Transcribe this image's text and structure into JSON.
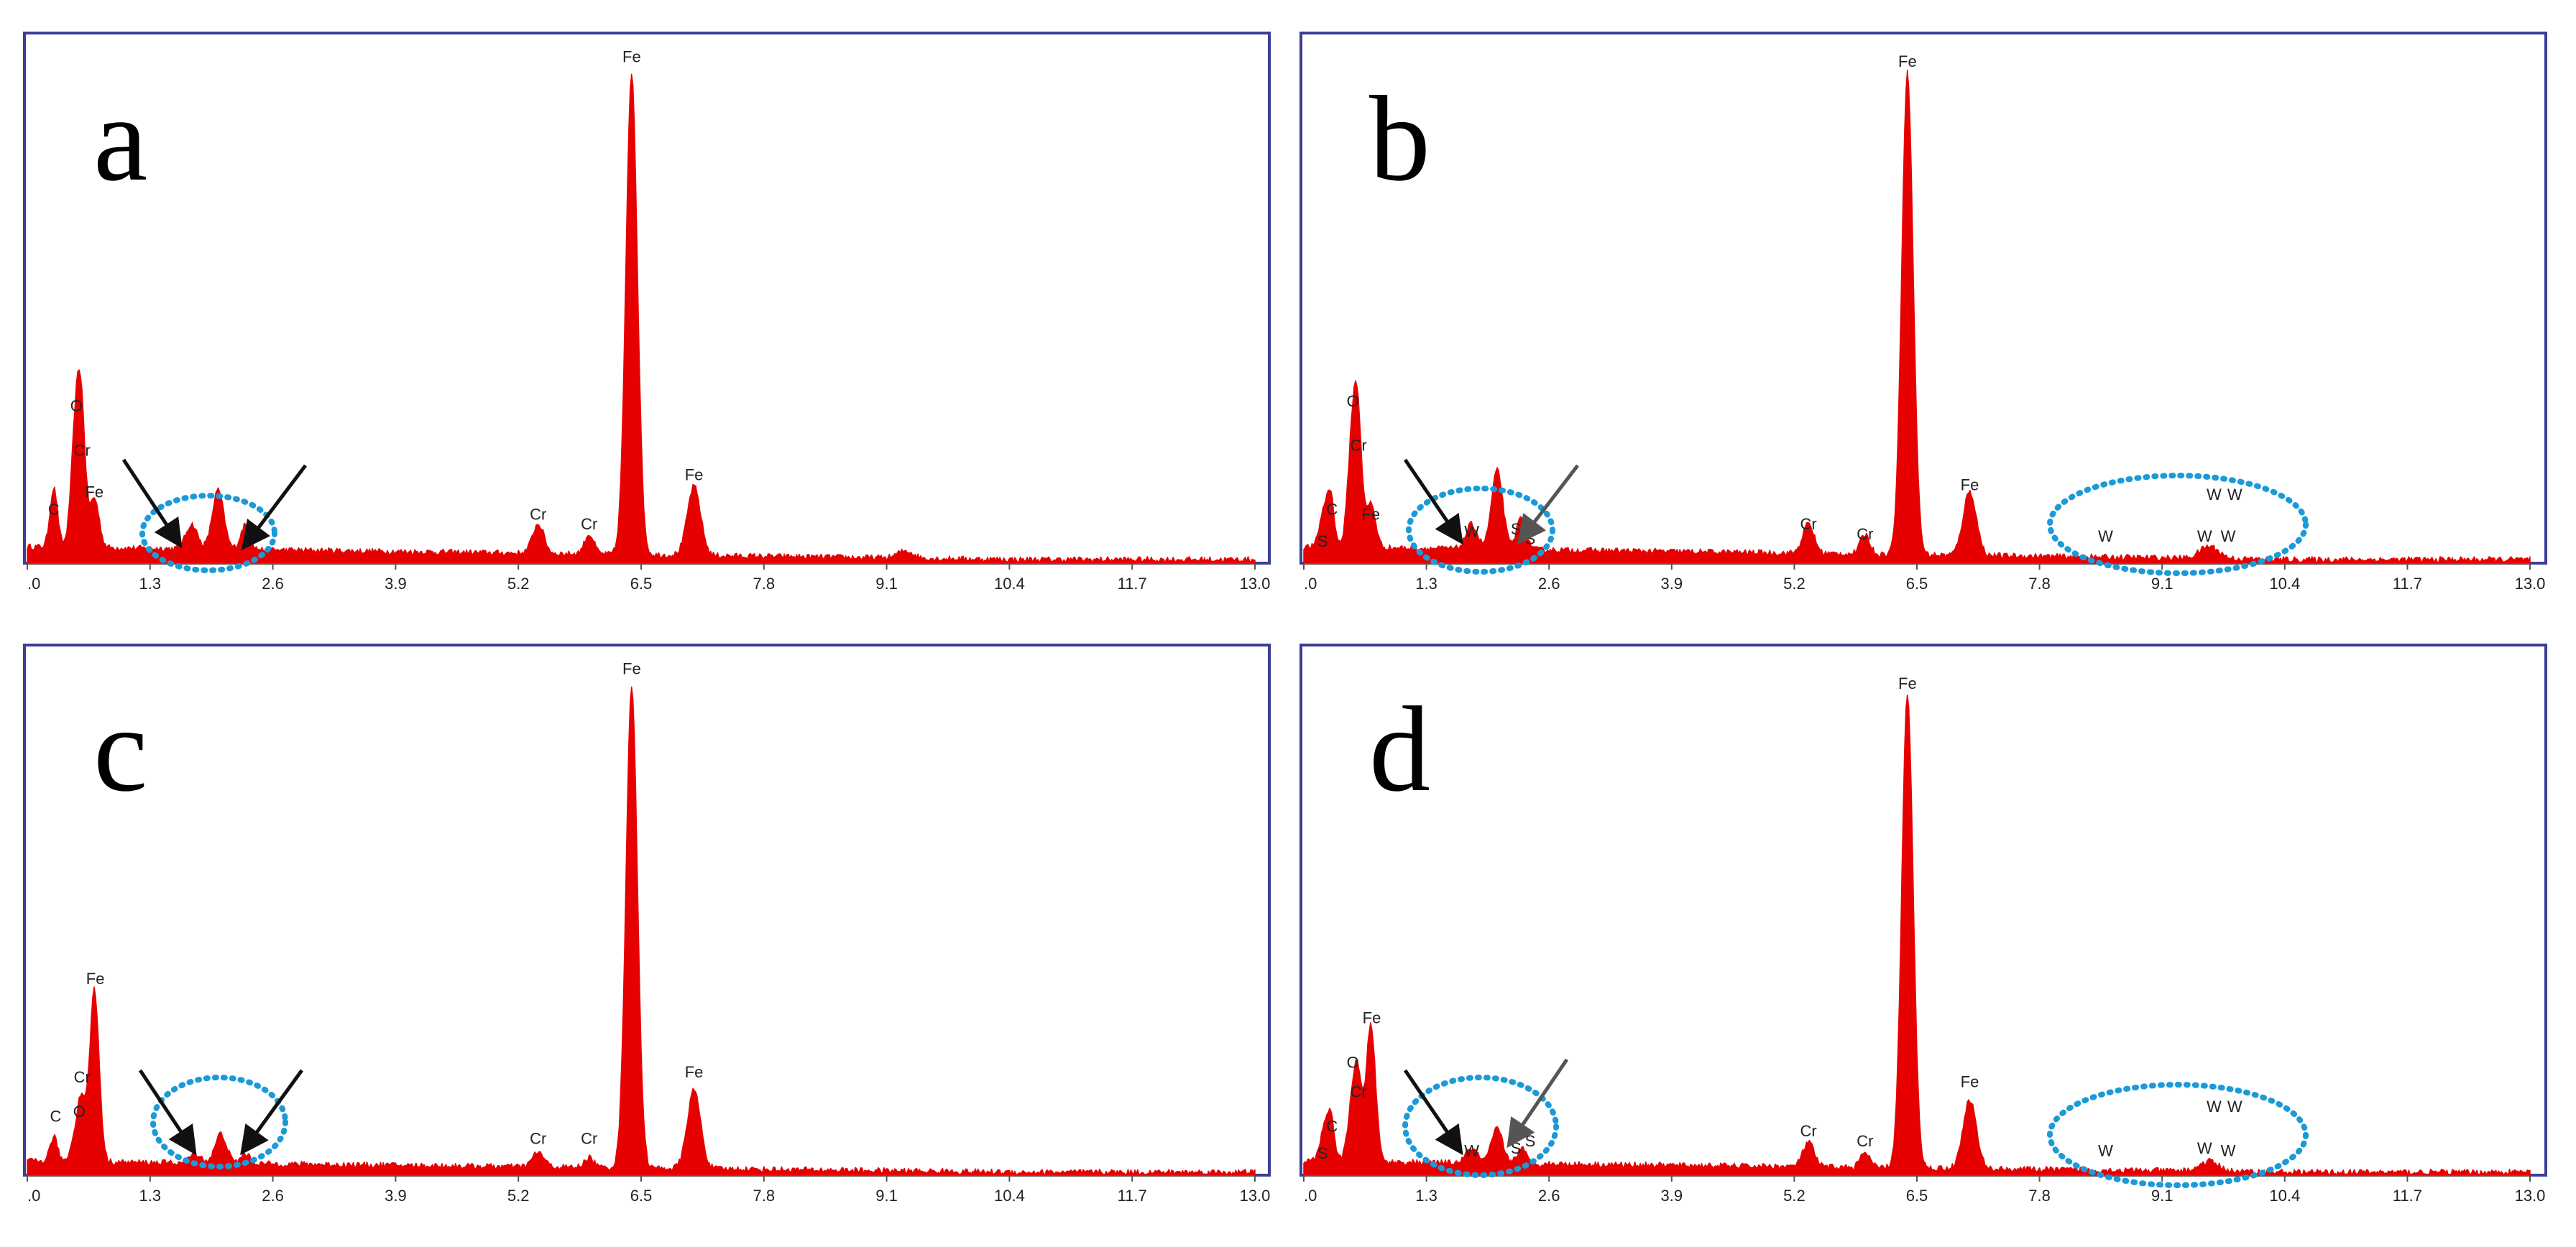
{
  "chart_data": [
    {
      "panel": "a",
      "type": "area",
      "x_ticks": [
        ".0",
        "1.3",
        "2.6",
        "3.9",
        "5.2",
        "6.5",
        "7.8",
        "9.1",
        "10.4",
        "11.7",
        "13.0"
      ],
      "xlim": [
        0,
        13.0
      ],
      "ylim": [
        0,
        1.0
      ],
      "baseline": 0.035,
      "peaks": [
        {
          "x": 0.28,
          "y": 0.12,
          "width": 0.04
        },
        {
          "x": 0.52,
          "y": 0.27,
          "width": 0.05
        },
        {
          "x": 0.58,
          "y": 0.18,
          "width": 0.04
        },
        {
          "x": 0.71,
          "y": 0.1,
          "width": 0.05
        },
        {
          "x": 1.74,
          "y": 0.05,
          "width": 0.06
        },
        {
          "x": 2.02,
          "y": 0.12,
          "width": 0.06
        },
        {
          "x": 2.31,
          "y": 0.05,
          "width": 0.05
        },
        {
          "x": 5.41,
          "y": 0.06,
          "width": 0.06
        },
        {
          "x": 5.95,
          "y": 0.04,
          "width": 0.05
        },
        {
          "x": 6.4,
          "y": 0.98,
          "width": 0.06
        },
        {
          "x": 7.06,
          "y": 0.14,
          "width": 0.07
        },
        {
          "x": 9.3,
          "y": 0.015,
          "width": 0.08
        }
      ],
      "labels": [
        {
          "text": "Fe",
          "x": 6.4,
          "y": 1.02
        },
        {
          "text": "O",
          "x": 0.52,
          "y": 0.31
        },
        {
          "text": "Cr",
          "x": 0.58,
          "y": 0.22
        },
        {
          "text": "Fe",
          "x": 0.71,
          "y": 0.135
        },
        {
          "text": "C",
          "x": 0.28,
          "y": 0.1
        },
        {
          "text": "Cr",
          "x": 5.41,
          "y": 0.09
        },
        {
          "text": "Cr",
          "x": 5.95,
          "y": 0.07
        },
        {
          "text": "Fe",
          "x": 7.06,
          "y": 0.17
        }
      ]
    },
    {
      "panel": "b",
      "type": "area",
      "x_ticks": [
        ".0",
        "1.3",
        "2.6",
        "3.9",
        "5.2",
        "6.5",
        "7.8",
        "9.1",
        "10.4",
        "11.7",
        "13.0"
      ],
      "xlim": [
        0,
        13.0
      ],
      "ylim": [
        0,
        1.0
      ],
      "baseline": 0.035,
      "peaks": [
        {
          "x": 0.2,
          "y": 0.06,
          "width": 0.04
        },
        {
          "x": 0.28,
          "y": 0.11,
          "width": 0.04
        },
        {
          "x": 0.52,
          "y": 0.24,
          "width": 0.05
        },
        {
          "x": 0.58,
          "y": 0.18,
          "width": 0.04
        },
        {
          "x": 0.71,
          "y": 0.09,
          "width": 0.05
        },
        {
          "x": 1.78,
          "y": 0.05,
          "width": 0.06
        },
        {
          "x": 2.05,
          "y": 0.16,
          "width": 0.06
        },
        {
          "x": 2.31,
          "y": 0.07,
          "width": 0.05
        },
        {
          "x": 5.35,
          "y": 0.06,
          "width": 0.06
        },
        {
          "x": 5.95,
          "y": 0.04,
          "width": 0.05
        },
        {
          "x": 6.4,
          "y": 0.98,
          "width": 0.06
        },
        {
          "x": 7.06,
          "y": 0.13,
          "width": 0.07
        },
        {
          "x": 9.6,
          "y": 0.025,
          "width": 0.1
        }
      ],
      "labels": [
        {
          "text": "Fe",
          "x": 6.4,
          "y": 1.01
        },
        {
          "text": "O",
          "x": 0.52,
          "y": 0.32
        },
        {
          "text": "Cr",
          "x": 0.58,
          "y": 0.23
        },
        {
          "text": "C",
          "x": 0.3,
          "y": 0.1
        },
        {
          "text": "Fe",
          "x": 0.71,
          "y": 0.09
        },
        {
          "text": "S",
          "x": 0.2,
          "y": 0.035
        },
        {
          "text": "W",
          "x": 1.78,
          "y": 0.055
        },
        {
          "text": "S",
          "x": 2.25,
          "y": 0.06
        },
        {
          "text": "S",
          "x": 2.4,
          "y": 0.04
        },
        {
          "text": "Cr",
          "x": 5.35,
          "y": 0.07
        },
        {
          "text": "Cr",
          "x": 5.95,
          "y": 0.05
        },
        {
          "text": "Fe",
          "x": 7.06,
          "y": 0.15
        },
        {
          "text": "W",
          "x": 8.5,
          "y": 0.045
        },
        {
          "text": "W",
          "x": 9.55,
          "y": 0.045
        },
        {
          "text": "W",
          "x": 9.8,
          "y": 0.045
        },
        {
          "text": "W",
          "x": 9.65,
          "y": 0.13
        },
        {
          "text": "W",
          "x": 9.87,
          "y": 0.13
        }
      ]
    },
    {
      "panel": "c",
      "type": "area",
      "x_ticks": [
        ".0",
        "1.3",
        "2.6",
        "3.9",
        "5.2",
        "6.5",
        "7.8",
        "9.1",
        "10.4",
        "11.7",
        "13.0"
      ],
      "xlim": [
        0,
        13.0
      ],
      "ylim": [
        0,
        1.0
      ],
      "baseline": 0.03,
      "peaks": [
        {
          "x": 0.28,
          "y": 0.05,
          "width": 0.04
        },
        {
          "x": 0.52,
          "y": 0.06,
          "width": 0.05
        },
        {
          "x": 0.58,
          "y": 0.1,
          "width": 0.04
        },
        {
          "x": 0.71,
          "y": 0.35,
          "width": 0.05
        },
        {
          "x": 1.78,
          "y": 0.02,
          "width": 0.06
        },
        {
          "x": 2.05,
          "y": 0.06,
          "width": 0.06
        },
        {
          "x": 2.31,
          "y": 0.02,
          "width": 0.05
        },
        {
          "x": 5.41,
          "y": 0.03,
          "width": 0.06
        },
        {
          "x": 5.95,
          "y": 0.02,
          "width": 0.05
        },
        {
          "x": 6.4,
          "y": 0.98,
          "width": 0.06
        },
        {
          "x": 7.06,
          "y": 0.16,
          "width": 0.07
        }
      ],
      "labels": [
        {
          "text": "Fe",
          "x": 6.4,
          "y": 1.02
        },
        {
          "text": "Fe",
          "x": 0.72,
          "y": 0.39
        },
        {
          "text": "Cr",
          "x": 0.58,
          "y": 0.19
        },
        {
          "text": "O",
          "x": 0.55,
          "y": 0.12
        },
        {
          "text": "C",
          "x": 0.3,
          "y": 0.11
        },
        {
          "text": "Cr",
          "x": 5.41,
          "y": 0.065
        },
        {
          "text": "Cr",
          "x": 5.95,
          "y": 0.065
        },
        {
          "text": "Fe",
          "x": 7.06,
          "y": 0.2
        }
      ]
    },
    {
      "panel": "d",
      "type": "area",
      "x_ticks": [
        ".0",
        "1.3",
        "2.6",
        "3.9",
        "5.2",
        "6.5",
        "7.8",
        "9.1",
        "10.4",
        "11.7",
        "13.0"
      ],
      "xlim": [
        0,
        13.0
      ],
      "ylim": [
        0,
        1.0
      ],
      "baseline": 0.03,
      "peaks": [
        {
          "x": 0.2,
          "y": 0.05,
          "width": 0.04
        },
        {
          "x": 0.28,
          "y": 0.1,
          "width": 0.04
        },
        {
          "x": 0.52,
          "y": 0.13,
          "width": 0.05
        },
        {
          "x": 0.58,
          "y": 0.12,
          "width": 0.04
        },
        {
          "x": 0.71,
          "y": 0.28,
          "width": 0.05
        },
        {
          "x": 1.78,
          "y": 0.03,
          "width": 0.06
        },
        {
          "x": 2.05,
          "y": 0.07,
          "width": 0.06
        },
        {
          "x": 2.31,
          "y": 0.03,
          "width": 0.05
        },
        {
          "x": 5.35,
          "y": 0.05,
          "width": 0.06
        },
        {
          "x": 5.95,
          "y": 0.03,
          "width": 0.05
        },
        {
          "x": 6.4,
          "y": 0.96,
          "width": 0.06
        },
        {
          "x": 7.06,
          "y": 0.14,
          "width": 0.07
        },
        {
          "x": 9.6,
          "y": 0.02,
          "width": 0.1
        }
      ],
      "labels": [
        {
          "text": "Fe",
          "x": 6.4,
          "y": 0.99
        },
        {
          "text": "Fe",
          "x": 0.72,
          "y": 0.31
        },
        {
          "text": "O",
          "x": 0.52,
          "y": 0.22
        },
        {
          "text": "Cr",
          "x": 0.58,
          "y": 0.16
        },
        {
          "text": "C",
          "x": 0.3,
          "y": 0.09
        },
        {
          "text": "S",
          "x": 0.2,
          "y": 0.035
        },
        {
          "text": "W",
          "x": 1.78,
          "y": 0.04
        },
        {
          "text": "S",
          "x": 2.25,
          "y": 0.045
        },
        {
          "text": "S",
          "x": 2.4,
          "y": 0.06
        },
        {
          "text": "Cr",
          "x": 5.35,
          "y": 0.08
        },
        {
          "text": "Cr",
          "x": 5.95,
          "y": 0.06
        },
        {
          "text": "Fe",
          "x": 7.06,
          "y": 0.18
        },
        {
          "text": "W",
          "x": 8.5,
          "y": 0.04
        },
        {
          "text": "W",
          "x": 9.55,
          "y": 0.045
        },
        {
          "text": "W",
          "x": 9.8,
          "y": 0.04
        },
        {
          "text": "W",
          "x": 9.65,
          "y": 0.13
        },
        {
          "text": "W",
          "x": 9.87,
          "y": 0.13
        }
      ]
    }
  ],
  "annotations": {
    "panel_letters": [
      "a",
      "b",
      "c",
      "d"
    ],
    "colors": {
      "spectrum": "#e60000",
      "circle": "#1c9ad8",
      "frame": "#3b3f94",
      "arrow": "#111111",
      "arrow_grey": "#555555"
    }
  }
}
